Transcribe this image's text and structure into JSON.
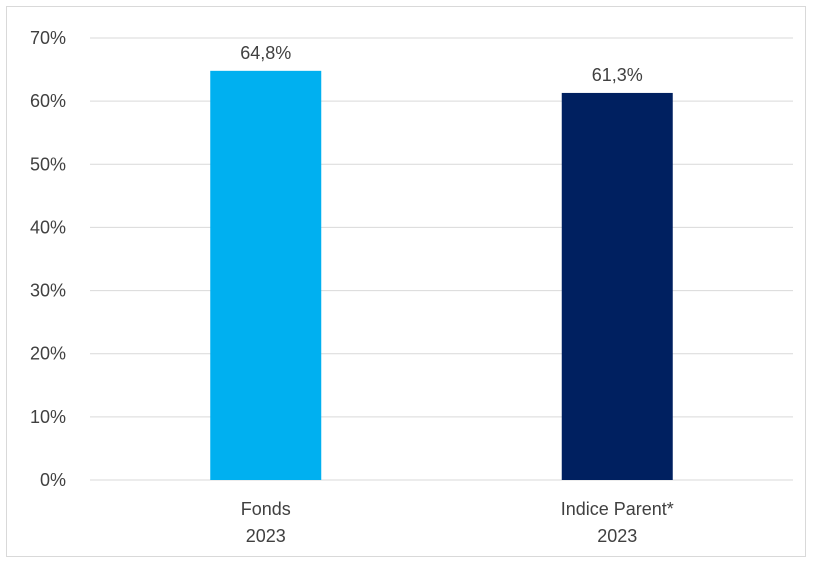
{
  "chart_data": {
    "type": "bar",
    "categories": [
      [
        "Fonds",
        "2023"
      ],
      [
        "Indice Parent*",
        "2023"
      ]
    ],
    "values": [
      64.8,
      61.3
    ],
    "data_labels": [
      "64,8%",
      "61,3%"
    ],
    "bar_colors": [
      "#00b0f0",
      "#002060"
    ],
    "y_ticks": [
      0,
      10,
      20,
      30,
      40,
      50,
      60,
      70
    ],
    "y_tick_labels": [
      "0%",
      "10%",
      "20%",
      "30%",
      "40%",
      "50%",
      "60%",
      "70%"
    ],
    "ylim": [
      0,
      70
    ],
    "grid": true,
    "legend": "none"
  }
}
